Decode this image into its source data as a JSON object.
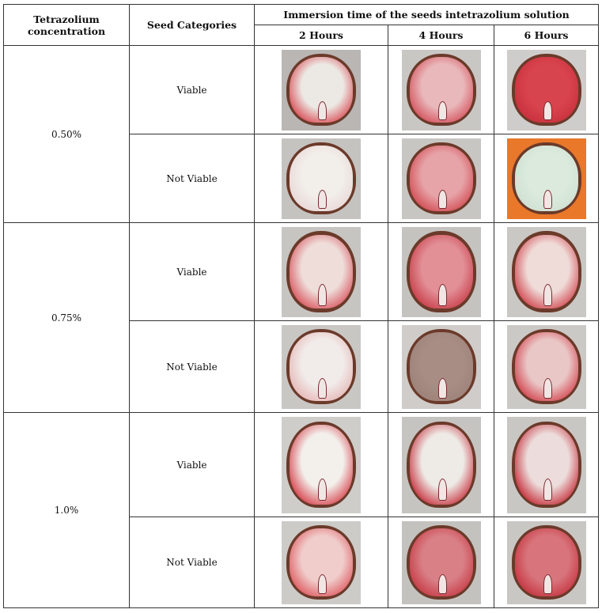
{
  "header": {
    "concentration": "Tetrazolium concentration",
    "categories": "Seed Categories",
    "immersion": "Immersion time of the seeds intetrazolium solution",
    "times": [
      "2 Hours",
      "4 Hours",
      "6 Hours"
    ]
  },
  "groups": [
    {
      "concentration": "0.50%",
      "rows": [
        {
          "category": "Viable",
          "images": [
            {
              "bg": "#b9b6b3",
              "outer": "#d94c55",
              "inner": "#ece8e3"
            },
            {
              "bg": "#c9c7c4",
              "outer": "#d4505b",
              "inner": "#e9b8bb"
            },
            {
              "bg": "#cfcdcb",
              "outer": "#c8303c",
              "inner": "#d8444e"
            }
          ]
        },
        {
          "category": "Not Viable",
          "images": [
            {
              "bg": "#c5c3c0",
              "outer": "#e8d8d6",
              "inner": "#f2eeea"
            },
            {
              "bg": "#c8c6c3",
              "outer": "#d24a52",
              "inner": "#e6a4a8"
            },
            {
              "bg": "#e9782a",
              "outer": "#cfe0d2",
              "inner": "#dbeadd"
            }
          ]
        }
      ]
    },
    {
      "concentration": "0.75%",
      "rows": [
        {
          "category": "Viable",
          "images": [
            {
              "bg": "#c7c5c2",
              "outer": "#d9545e",
              "inner": "#eeddd9"
            },
            {
              "bg": "#c5c3c0",
              "outer": "#c83d49",
              "inner": "#e28f96"
            },
            {
              "bg": "#cac8c5",
              "outer": "#d2464f",
              "inner": "#efdcd9"
            }
          ]
        },
        {
          "category": "Not Viable",
          "images": [
            {
              "bg": "#c9c7c4",
              "outer": "#e5b7b6",
              "inner": "#f1ecea"
            },
            {
              "bg": "#cfccc9",
              "outer": "#9d8279",
              "inner": "#a88d84"
            },
            {
              "bg": "#cbc9c6",
              "outer": "#d2434d",
              "inner": "#eac7c7"
            }
          ]
        }
      ]
    },
    {
      "concentration": "1.0%",
      "rows": [
        {
          "category": "Viable",
          "images": [
            {
              "bg": "#cfcdca",
              "outer": "#d6404a",
              "inner": "#f3f0ec"
            },
            {
              "bg": "#c6c4c1",
              "outer": "#c7303d",
              "inner": "#eeeae6"
            },
            {
              "bg": "#c9c7c4",
              "outer": "#c52a36",
              "inner": "#ecdcdb"
            }
          ]
        },
        {
          "category": "Not Viable",
          "images": [
            {
              "bg": "#cdcbc8",
              "outer": "#de5a60",
              "inner": "#f0cdcb"
            },
            {
              "bg": "#c4c2bf",
              "outer": "#c63a45",
              "inner": "#d97f86"
            },
            {
              "bg": "#c9c7c4",
              "outer": "#c43440",
              "inner": "#d8757c"
            }
          ]
        }
      ]
    }
  ]
}
